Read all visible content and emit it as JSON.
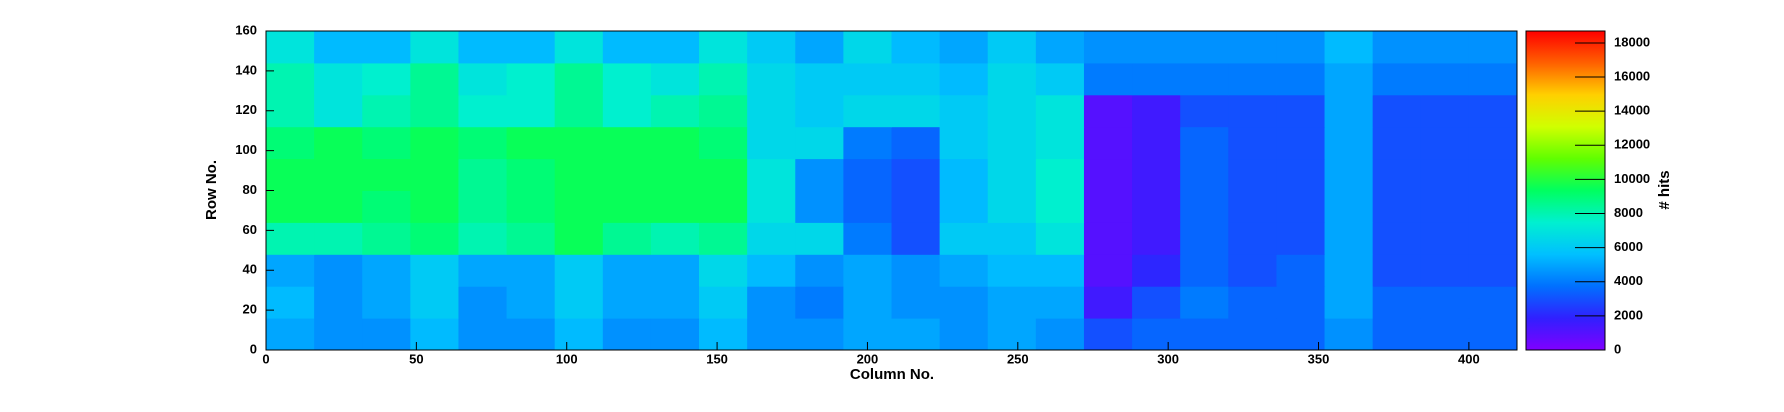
{
  "chart_data": {
    "type": "heatmap",
    "xlabel": "Column No.",
    "ylabel": "Row No.",
    "zlabel": "# hits",
    "xbins": [
      0,
      16,
      32,
      48,
      64,
      80,
      96,
      112,
      128,
      144,
      160,
      176,
      192,
      208,
      224,
      240,
      256,
      272,
      288,
      304,
      320,
      336,
      352,
      368,
      384,
      400,
      416
    ],
    "ybins": [
      0,
      16,
      32,
      48,
      64,
      80,
      96,
      112,
      128,
      144,
      160
    ],
    "z": [
      [
        5000,
        4500,
        4500,
        5500,
        4500,
        4500,
        5500,
        4500,
        4500,
        5500,
        4500,
        4500,
        5000,
        5000,
        4500,
        5000,
        4500,
        3000,
        3500,
        3500,
        3500,
        3500,
        4500,
        3500,
        3500,
        3500
      ],
      [
        5500,
        4500,
        5000,
        6000,
        4500,
        5000,
        6000,
        5000,
        5000,
        6000,
        4500,
        4000,
        5000,
        4500,
        4500,
        5000,
        5000,
        1500,
        3000,
        4000,
        3500,
        3500,
        5000,
        3500,
        3500,
        3500
      ],
      [
        5000,
        4500,
        5000,
        6000,
        5000,
        5000,
        6000,
        5000,
        5000,
        6500,
        5500,
        4500,
        5000,
        4500,
        5000,
        5500,
        5500,
        1000,
        2000,
        3500,
        3000,
        3500,
        5000,
        3000,
        3000,
        3000
      ],
      [
        8000,
        8000,
        8500,
        9000,
        8000,
        8500,
        9500,
        8500,
        8000,
        8500,
        6500,
        6500,
        4000,
        3000,
        6000,
        6000,
        7000,
        1000,
        1500,
        3500,
        3000,
        3000,
        5000,
        3000,
        3000,
        3000
      ],
      [
        9500,
        9500,
        9000,
        9500,
        8500,
        9000,
        9500,
        9500,
        9500,
        9500,
        7000,
        4500,
        3500,
        3000,
        5500,
        6500,
        7500,
        1000,
        1500,
        3500,
        3000,
        3000,
        5000,
        3000,
        3000,
        3000
      ],
      [
        9500,
        9500,
        9500,
        9500,
        8500,
        9000,
        9500,
        9500,
        9500,
        9500,
        7000,
        4500,
        3500,
        3000,
        5500,
        6500,
        7500,
        1000,
        1500,
        3500,
        3000,
        3000,
        5000,
        3000,
        3000,
        3000
      ],
      [
        9000,
        9500,
        9000,
        9500,
        9000,
        9500,
        9500,
        9500,
        9500,
        9000,
        6500,
        6500,
        4000,
        3500,
        6000,
        6500,
        7000,
        1000,
        1500,
        3500,
        3000,
        3000,
        5000,
        3000,
        3000,
        3000
      ],
      [
        8000,
        7000,
        8000,
        8500,
        7500,
        7500,
        8500,
        7500,
        8000,
        8500,
        6500,
        6000,
        6500,
        6500,
        6000,
        6500,
        7000,
        1000,
        1500,
        3000,
        3000,
        3000,
        5000,
        3000,
        3000,
        3000
      ],
      [
        8000,
        7000,
        7500,
        8500,
        7000,
        7500,
        8500,
        7500,
        7000,
        8000,
        6500,
        6000,
        6000,
        6000,
        5500,
        6500,
        6000,
        4000,
        4000,
        4000,
        4000,
        4000,
        5000,
        4000,
        4000,
        4000
      ],
      [
        7000,
        5500,
        5500,
        7000,
        5500,
        5500,
        7000,
        5500,
        5500,
        7000,
        6000,
        5000,
        6500,
        5500,
        5000,
        6000,
        5000,
        4500,
        4500,
        4500,
        4500,
        4500,
        5500,
        4500,
        4500,
        4500
      ]
    ],
    "xlim": [
      0,
      416
    ],
    "ylim": [
      0,
      160
    ],
    "zlim": [
      0,
      18700
    ],
    "xticks": [
      0,
      50,
      100,
      150,
      200,
      250,
      300,
      350,
      400
    ],
    "yticks": [
      0,
      20,
      40,
      60,
      80,
      100,
      120,
      140,
      160
    ],
    "zticks": [
      0,
      2000,
      4000,
      6000,
      8000,
      10000,
      12000,
      14000,
      16000,
      18000
    ],
    "colorscale": [
      "#8000ff",
      "#3020ff",
      "#0070ff",
      "#00c0ff",
      "#00f0d0",
      "#00ff60",
      "#60ff00",
      "#d0ff00",
      "#ffd000",
      "#ff6000",
      "#ff0000"
    ]
  }
}
